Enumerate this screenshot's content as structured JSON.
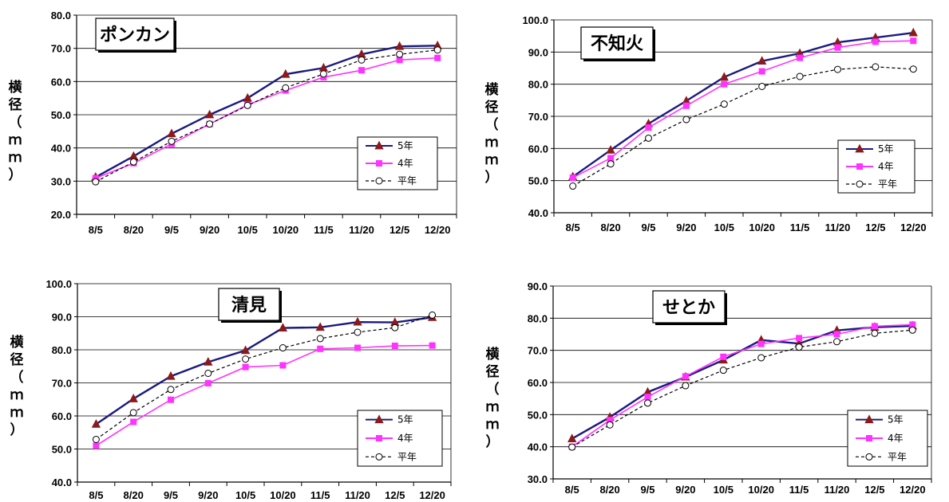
{
  "chart_data": [
    {
      "type": "line",
      "title": "ポンカン",
      "ylabel": "横径（ｍｍ）",
      "ylim": [
        20,
        80
      ],
      "yticks": [
        "20.0",
        "30.0",
        "40.0",
        "50.0",
        "60.0",
        "70.0",
        "80.0"
      ],
      "categories": [
        "8/5",
        "8/20",
        "9/5",
        "9/20",
        "10/5",
        "10/20",
        "11/5",
        "11/20",
        "12/5",
        "12/20"
      ],
      "legend_position": "bottom-right",
      "grid": true,
      "series": [
        {
          "name": "5年",
          "color": "#1a1a80",
          "marker": "triangle",
          "values": [
            31.2,
            37.5,
            44.3,
            50.0,
            55.0,
            62.2,
            64.1,
            68.2,
            70.6,
            70.8
          ]
        },
        {
          "name": "4年",
          "color": "#ff33ff",
          "marker": "square",
          "values": [
            30.9,
            35.4,
            41.2,
            47.2,
            53.0,
            57.3,
            61.3,
            63.4,
            66.5,
            67.1
          ]
        },
        {
          "name": "平年",
          "color": "#000000",
          "marker": "circle",
          "dashed": true,
          "values": [
            29.8,
            35.8,
            42.0,
            47.2,
            52.8,
            58.1,
            62.3,
            66.5,
            68.2,
            69.5
          ]
        }
      ]
    },
    {
      "type": "line",
      "title": "不知火",
      "ylabel": "横径（ｍｍ）",
      "ylim": [
        40,
        100
      ],
      "yticks": [
        "40.0",
        "50.0",
        "60.0",
        "70.0",
        "80.0",
        "90.0",
        "100.0"
      ],
      "categories": [
        "8/5",
        "8/20",
        "9/5",
        "9/20",
        "10/5",
        "10/20",
        "11/5",
        "11/20",
        "12/5",
        "12/20"
      ],
      "legend_position": "bottom-right",
      "grid": true,
      "series": [
        {
          "name": "5年",
          "color": "#1a1a80",
          "marker": "triangle",
          "values": [
            51.2,
            59.5,
            67.7,
            74.8,
            82.2,
            87.2,
            89.6,
            93.0,
            94.5,
            96.0
          ]
        },
        {
          "name": "4年",
          "color": "#ff33ff",
          "marker": "square",
          "values": [
            50.9,
            57.0,
            66.5,
            73.3,
            80.0,
            84.0,
            88.2,
            91.4,
            93.2,
            93.5
          ]
        },
        {
          "name": "平年",
          "color": "#000000",
          "marker": "circle",
          "dashed": true,
          "values": [
            48.3,
            55.2,
            63.2,
            69.0,
            73.8,
            79.3,
            82.4,
            84.6,
            85.4,
            84.7
          ]
        }
      ]
    },
    {
      "type": "line",
      "title": "清見",
      "ylabel": "横径（ｍｍ）",
      "ylim": [
        40,
        100
      ],
      "yticks": [
        "40.0",
        "50.0",
        "60.0",
        "70.0",
        "80.0",
        "90.0",
        "100.0"
      ],
      "categories": [
        "8/5",
        "8/20",
        "9/5",
        "9/20",
        "10/5",
        "10/20",
        "11/5",
        "11/20",
        "12/5",
        "12/20"
      ],
      "legend_position": "bottom-right",
      "grid": true,
      "series": [
        {
          "name": "5年",
          "color": "#1a1a80",
          "marker": "triangle",
          "values": [
            57.5,
            65.2,
            72.0,
            76.3,
            79.8,
            86.6,
            86.8,
            88.4,
            88.3,
            89.8
          ]
        },
        {
          "name": "4年",
          "color": "#ff33ff",
          "marker": "square",
          "values": [
            51.0,
            58.2,
            64.9,
            69.9,
            74.8,
            75.3,
            80.3,
            80.6,
            81.2,
            81.3
          ]
        },
        {
          "name": "平年",
          "color": "#000000",
          "marker": "circle",
          "dashed": true,
          "values": [
            52.9,
            61.0,
            68.0,
            72.9,
            77.2,
            80.6,
            83.4,
            85.3,
            86.7,
            90.5
          ]
        }
      ]
    },
    {
      "type": "line",
      "title": "せとか",
      "ylabel": "横径（ｍｍ）",
      "ylim": [
        30,
        90
      ],
      "yticks": [
        "30.0",
        "40.0",
        "50.0",
        "60.0",
        "70.0",
        "80.0",
        "90.0"
      ],
      "categories": [
        "8/5",
        "8/20",
        "9/5",
        "9/20",
        "10/5",
        "10/20",
        "11/5",
        "11/20",
        "12/5",
        "12/20"
      ],
      "legend_position": "bottom-right",
      "grid": true,
      "series": [
        {
          "name": "5年",
          "color": "#1a1a80",
          "marker": "triangle",
          "values": [
            42.5,
            49.2,
            57.0,
            61.7,
            67.0,
            73.2,
            72.1,
            76.2,
            77.2,
            77.6
          ]
        },
        {
          "name": "4年",
          "color": "#ff33ff",
          "marker": "square",
          "values": [
            40.0,
            48.3,
            55.5,
            61.9,
            68.0,
            72.0,
            73.8,
            75.0,
            77.5,
            78.0
          ]
        },
        {
          "name": "平年",
          "color": "#000000",
          "marker": "circle",
          "dashed": true,
          "values": [
            39.9,
            46.8,
            53.6,
            59.0,
            63.8,
            67.7,
            71.0,
            72.7,
            75.3,
            76.3
          ]
        }
      ]
    }
  ]
}
